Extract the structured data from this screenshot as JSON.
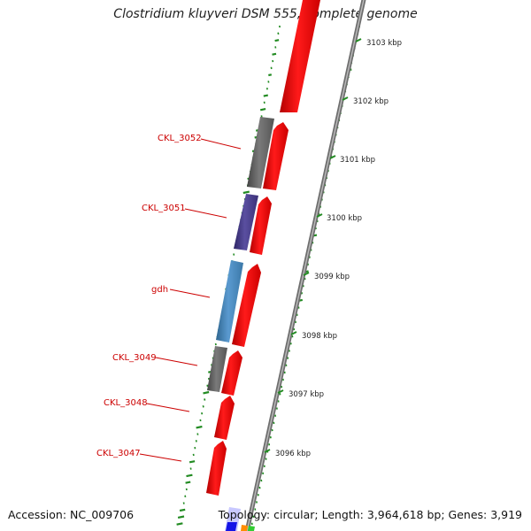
{
  "title": "Clostridium kluyveri DSM 555, complete genome",
  "footer": {
    "accession": "Accession: NC_009706",
    "summary": "Topology: circular; Length: 3,964,618 bp; Genes: 3,919"
  },
  "colors": {
    "forward_gene": "#ff0000",
    "backbone": "#888888",
    "gc_dots": "#228b22",
    "label": "#cc0000",
    "gene_gray": "#666666",
    "gene_purple": "#4b3f8f",
    "gene_blue": "#4682b4"
  },
  "scale_labels": [
    "3103 kbp",
    "3102 kbp",
    "3101 kbp",
    "3100 kbp",
    "3099 kbp",
    "3098 kbp",
    "3097 kbp",
    "3096 kbp"
  ],
  "gene_labels": [
    "CKL_3052",
    "CKL_3051",
    "gdh",
    "CKL_3049",
    "CKL_3048",
    "CKL_3047"
  ]
}
